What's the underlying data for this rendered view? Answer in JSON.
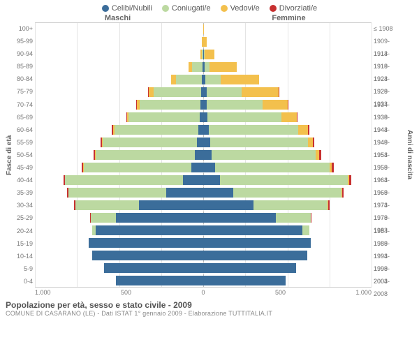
{
  "legend": [
    {
      "label": "Celibi/Nubili",
      "color": "#3b6d9a"
    },
    {
      "label": "Coniugati/e",
      "color": "#bcd9a1"
    },
    {
      "label": "Vedovi/e",
      "color": "#f3c04d"
    },
    {
      "label": "Divorziati/e",
      "color": "#c73030"
    }
  ],
  "headers": {
    "male": "Maschi",
    "female": "Femmine"
  },
  "ylabel_left": "Fasce di età",
  "ylabel_right": "Anni di nascita",
  "xlim": 1000,
  "xticks": [
    "1.000",
    "500",
    "0",
    "500",
    "1.000"
  ],
  "grid_color": "#e4e4e4",
  "center_color": "#bcbcbc",
  "title": "Popolazione per età, sesso e stato civile - 2009",
  "subtitle": "COMUNE DI CASARANO (LE) - Dati ISTAT 1° gennaio 2009 - Elaborazione TUTTITALIA.IT",
  "rows": [
    {
      "age": "100+",
      "birth": "≤ 1908",
      "m": [
        0,
        0,
        2,
        0
      ],
      "f": [
        0,
        0,
        4,
        0
      ]
    },
    {
      "age": "95-99",
      "birth": "1909-1913",
      "m": [
        0,
        2,
        6,
        0
      ],
      "f": [
        2,
        0,
        20,
        0
      ]
    },
    {
      "age": "90-94",
      "birth": "1914-1918",
      "m": [
        2,
        6,
        8,
        0
      ],
      "f": [
        4,
        4,
        60,
        0
      ]
    },
    {
      "age": "85-89",
      "birth": "1919-1923",
      "m": [
        6,
        60,
        20,
        0
      ],
      "f": [
        8,
        30,
        160,
        0
      ]
    },
    {
      "age": "80-84",
      "birth": "1924-1928",
      "m": [
        10,
        150,
        30,
        0
      ],
      "f": [
        14,
        90,
        230,
        0
      ]
    },
    {
      "age": "75-79",
      "birth": "1929-1933",
      "m": [
        14,
        280,
        30,
        2
      ],
      "f": [
        20,
        210,
        220,
        2
      ]
    },
    {
      "age": "70-74",
      "birth": "1934-1938",
      "m": [
        18,
        360,
        18,
        4
      ],
      "f": [
        22,
        330,
        150,
        4
      ]
    },
    {
      "age": "65-69",
      "birth": "1939-1943",
      "m": [
        22,
        420,
        10,
        6
      ],
      "f": [
        26,
        440,
        90,
        6
      ]
    },
    {
      "age": "60-64",
      "birth": "1944-1948",
      "m": [
        28,
        500,
        6,
        8
      ],
      "f": [
        34,
        530,
        60,
        8
      ]
    },
    {
      "age": "55-59",
      "birth": "1949-1953",
      "m": [
        38,
        560,
        4,
        8
      ],
      "f": [
        42,
        580,
        30,
        8
      ]
    },
    {
      "age": "50-54",
      "birth": "1954-1958",
      "m": [
        48,
        590,
        4,
        10
      ],
      "f": [
        50,
        620,
        20,
        10
      ]
    },
    {
      "age": "45-49",
      "birth": "1959-1963",
      "m": [
        70,
        640,
        2,
        10
      ],
      "f": [
        70,
        680,
        14,
        12
      ]
    },
    {
      "age": "40-44",
      "birth": "1964-1968",
      "m": [
        120,
        700,
        2,
        10
      ],
      "f": [
        100,
        760,
        8,
        12
      ]
    },
    {
      "age": "35-39",
      "birth": "1969-1973",
      "m": [
        220,
        580,
        0,
        8
      ],
      "f": [
        180,
        640,
        4,
        10
      ]
    },
    {
      "age": "30-34",
      "birth": "1974-1978",
      "m": [
        380,
        380,
        0,
        6
      ],
      "f": [
        300,
        440,
        2,
        8
      ]
    },
    {
      "age": "25-29",
      "birth": "1979-1983",
      "m": [
        520,
        150,
        0,
        2
      ],
      "f": [
        430,
        210,
        0,
        4
      ]
    },
    {
      "age": "20-24",
      "birth": "1984-1988",
      "m": [
        640,
        20,
        0,
        0
      ],
      "f": [
        590,
        40,
        0,
        0
      ]
    },
    {
      "age": "15-19",
      "birth": "1989-1993",
      "m": [
        680,
        0,
        0,
        0
      ],
      "f": [
        640,
        0,
        0,
        0
      ]
    },
    {
      "age": "10-14",
      "birth": "1994-1998",
      "m": [
        660,
        0,
        0,
        0
      ],
      "f": [
        620,
        0,
        0,
        0
      ]
    },
    {
      "age": "5-9",
      "birth": "1999-2003",
      "m": [
        590,
        0,
        0,
        0
      ],
      "f": [
        550,
        0,
        0,
        0
      ]
    },
    {
      "age": "0-4",
      "birth": "2004-2008",
      "m": [
        520,
        0,
        0,
        0
      ],
      "f": [
        490,
        0,
        0,
        0
      ]
    }
  ]
}
